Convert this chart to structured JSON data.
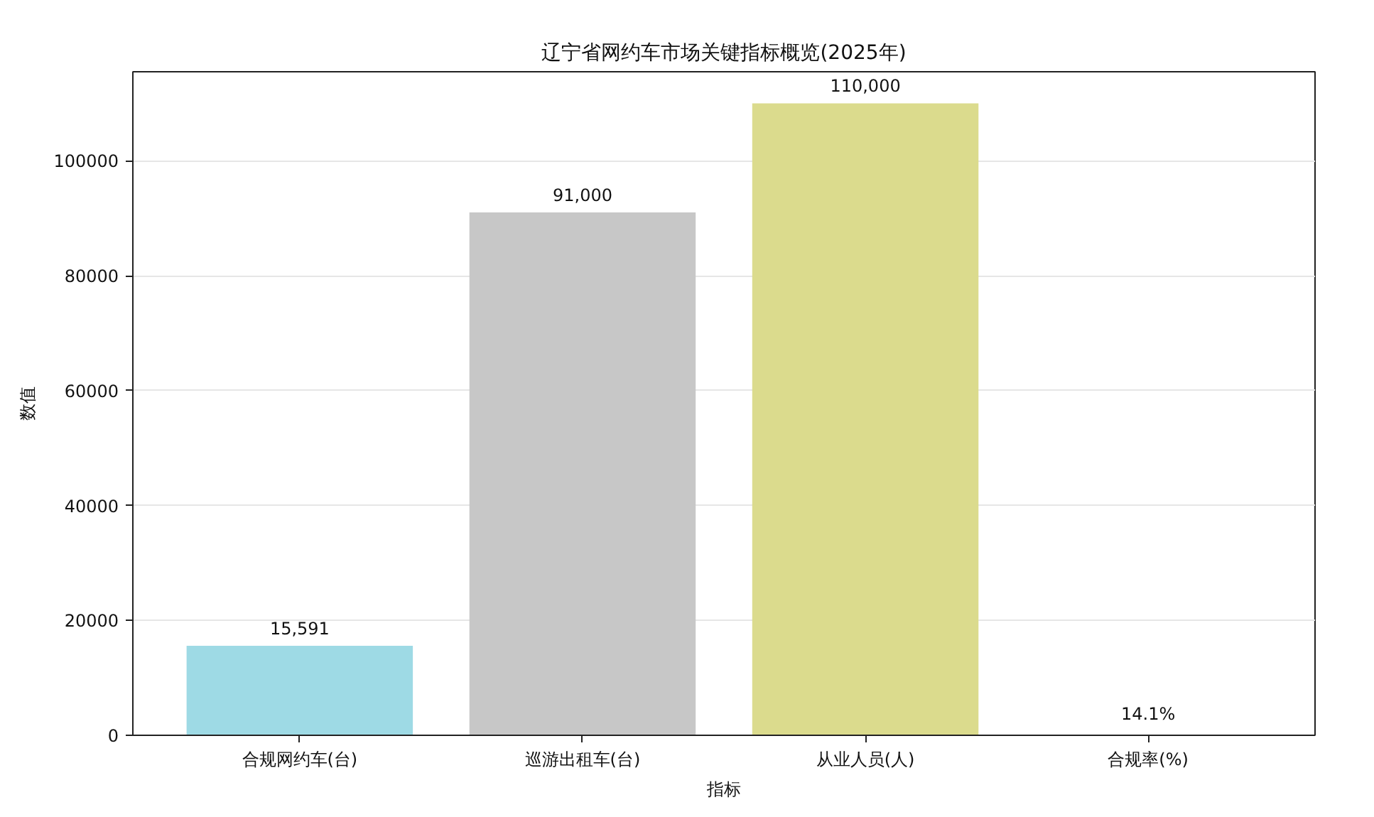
{
  "chart_data": {
    "type": "bar",
    "title": "辽宁省网约车市场关键指标概览(2025年)",
    "xlabel": "指标",
    "ylabel": "数值",
    "categories": [
      "合规网约车(台)",
      "巡游出租车(台)",
      "从业人员(人)",
      "合规率(%)"
    ],
    "values": [
      15591,
      91000,
      110000,
      14.1
    ],
    "colors": [
      "#9edae5",
      "#c7c7c7",
      "#dbdb8d",
      "#f7b6d2"
    ],
    "value_labels": [
      "15,591",
      "91,000",
      "110,000",
      "14.1%"
    ],
    "ylim": [
      0,
      115500
    ],
    "yticks": [
      0,
      20000,
      40000,
      60000,
      80000,
      100000
    ],
    "grid": "y"
  }
}
